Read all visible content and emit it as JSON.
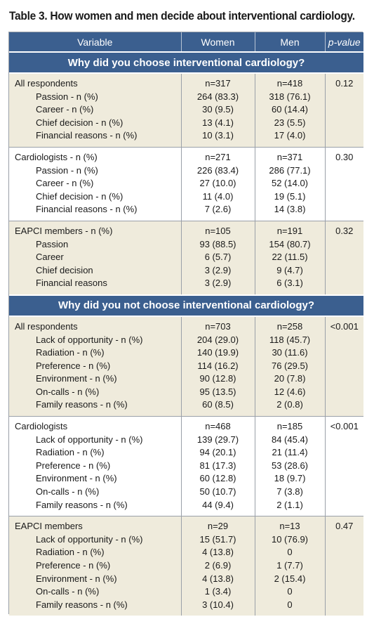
{
  "caption": "Table 3. How women and men decide about interventional cardiology.",
  "headers": {
    "variable": "Variable",
    "women": "Women",
    "men": "Men",
    "pvalue": "p-value"
  },
  "sections": [
    {
      "title": "Why did you choose interventional cardiology?",
      "groups": [
        {
          "label": "All respondents",
          "women": "n=317",
          "men": "n=418",
          "pvalue": "0.12",
          "rows": [
            {
              "label": "Passion - n (%)",
              "women": "264 (83.3)",
              "men": "318 (76.1)"
            },
            {
              "label": "Career - n (%)",
              "women": "30 (9.5)",
              "men": "60 (14.4)"
            },
            {
              "label": "Chief decision - n (%)",
              "women": "13 (4.1)",
              "men": "23 (5.5)"
            },
            {
              "label": "Financial reasons - n (%)",
              "women": "10 (3.1)",
              "men": "17 (4.0)"
            }
          ]
        },
        {
          "label": "Cardiologists - n (%)",
          "women": "n=271",
          "men": "n=371",
          "pvalue": "0.30",
          "rows": [
            {
              "label": "Passion - n (%)",
              "women": "226 (83.4)",
              "men": "286 (77.1)"
            },
            {
              "label": "Career - n (%)",
              "women": "27 (10.0)",
              "men": "52 (14.0)"
            },
            {
              "label": "Chief decision - n (%)",
              "women": "11 (4.0)",
              "men": "19 (5.1)"
            },
            {
              "label": "Financial reasons - n (%)",
              "women": "7 (2.6)",
              "men": "14 (3.8)"
            }
          ]
        },
        {
          "label": "EAPCI members - n (%)",
          "women": "n=105",
          "men": "n=191",
          "pvalue": "0.32",
          "rows": [
            {
              "label": "Passion",
              "women": "93 (88.5)",
              "men": "154 (80.7)"
            },
            {
              "label": "Career",
              "women": "6 (5.7)",
              "men": "22 (11.5)"
            },
            {
              "label": "Chief decision",
              "women": "3 (2.9)",
              "men": "9 (4.7)"
            },
            {
              "label": "Financial reasons",
              "women": "3 (2.9)",
              "men": "6 (3.1)"
            }
          ]
        }
      ]
    },
    {
      "title": "Why did you not choose interventional cardiology?",
      "groups": [
        {
          "label": "All respondents",
          "women": "n=703",
          "men": "n=258",
          "pvalue": "<0.001",
          "rows": [
            {
              "label": "Lack of opportunity - n (%)",
              "women": "204 (29.0)",
              "men": "118 (45.7)"
            },
            {
              "label": "Radiation - n (%)",
              "women": "140 (19.9)",
              "men": "30 (11.6)"
            },
            {
              "label": "Preference - n (%)",
              "women": "114 (16.2)",
              "men": "76 (29.5)"
            },
            {
              "label": "Environment - n (%)",
              "women": "90 (12.8)",
              "men": "20 (7.8)"
            },
            {
              "label": "On-calls - n (%)",
              "women": "95 (13.5)",
              "men": "12 (4.6)"
            },
            {
              "label": "Family reasons - n (%)",
              "women": "60 (8.5)",
              "men": "2 (0.8)"
            }
          ]
        },
        {
          "label": "Cardiologists",
          "women": "n=468",
          "men": "n=185",
          "pvalue": "<0.001",
          "rows": [
            {
              "label": "Lack of opportunity - n (%)",
              "women": "139 (29.7)",
              "men": "84 (45.4)"
            },
            {
              "label": "Radiation - n (%)",
              "women": "94 (20.1)",
              "men": "21 (11.4)"
            },
            {
              "label": "Preference - n (%)",
              "women": "81 (17.3)",
              "men": "53 (28.6)"
            },
            {
              "label": "Environment - n (%)",
              "women": "60 (12.8)",
              "men": "18 (9.7)"
            },
            {
              "label": "On-calls - n (%)",
              "women": "50 (10.7)",
              "men": "7 (3.8)"
            },
            {
              "label": "Family reasons - n (%)",
              "women": "44 (9.4)",
              "men": "2 (1.1)"
            }
          ]
        },
        {
          "label": "EAPCI members",
          "women": "n=29",
          "men": "n=13",
          "pvalue": "0.47",
          "rows": [
            {
              "label": "Lack of opportunity - n (%)",
              "women": "15 (51.7)",
              "men": "10 (76.9)"
            },
            {
              "label": "Radiation - n (%)",
              "women": "4 (13.8)",
              "men": "0"
            },
            {
              "label": "Preference - n (%)",
              "women": "2 (6.9)",
              "men": "1 (7.7)"
            },
            {
              "label": "Environment - n (%)",
              "women": "4 (13.8)",
              "men": "2 (15.4)"
            },
            {
              "label": "On-calls - n (%)",
              "women": "1 (3.4)",
              "men": "0"
            },
            {
              "label": "Family reasons - n (%)",
              "women": "3 (10.4)",
              "men": "0"
            }
          ]
        }
      ]
    }
  ]
}
